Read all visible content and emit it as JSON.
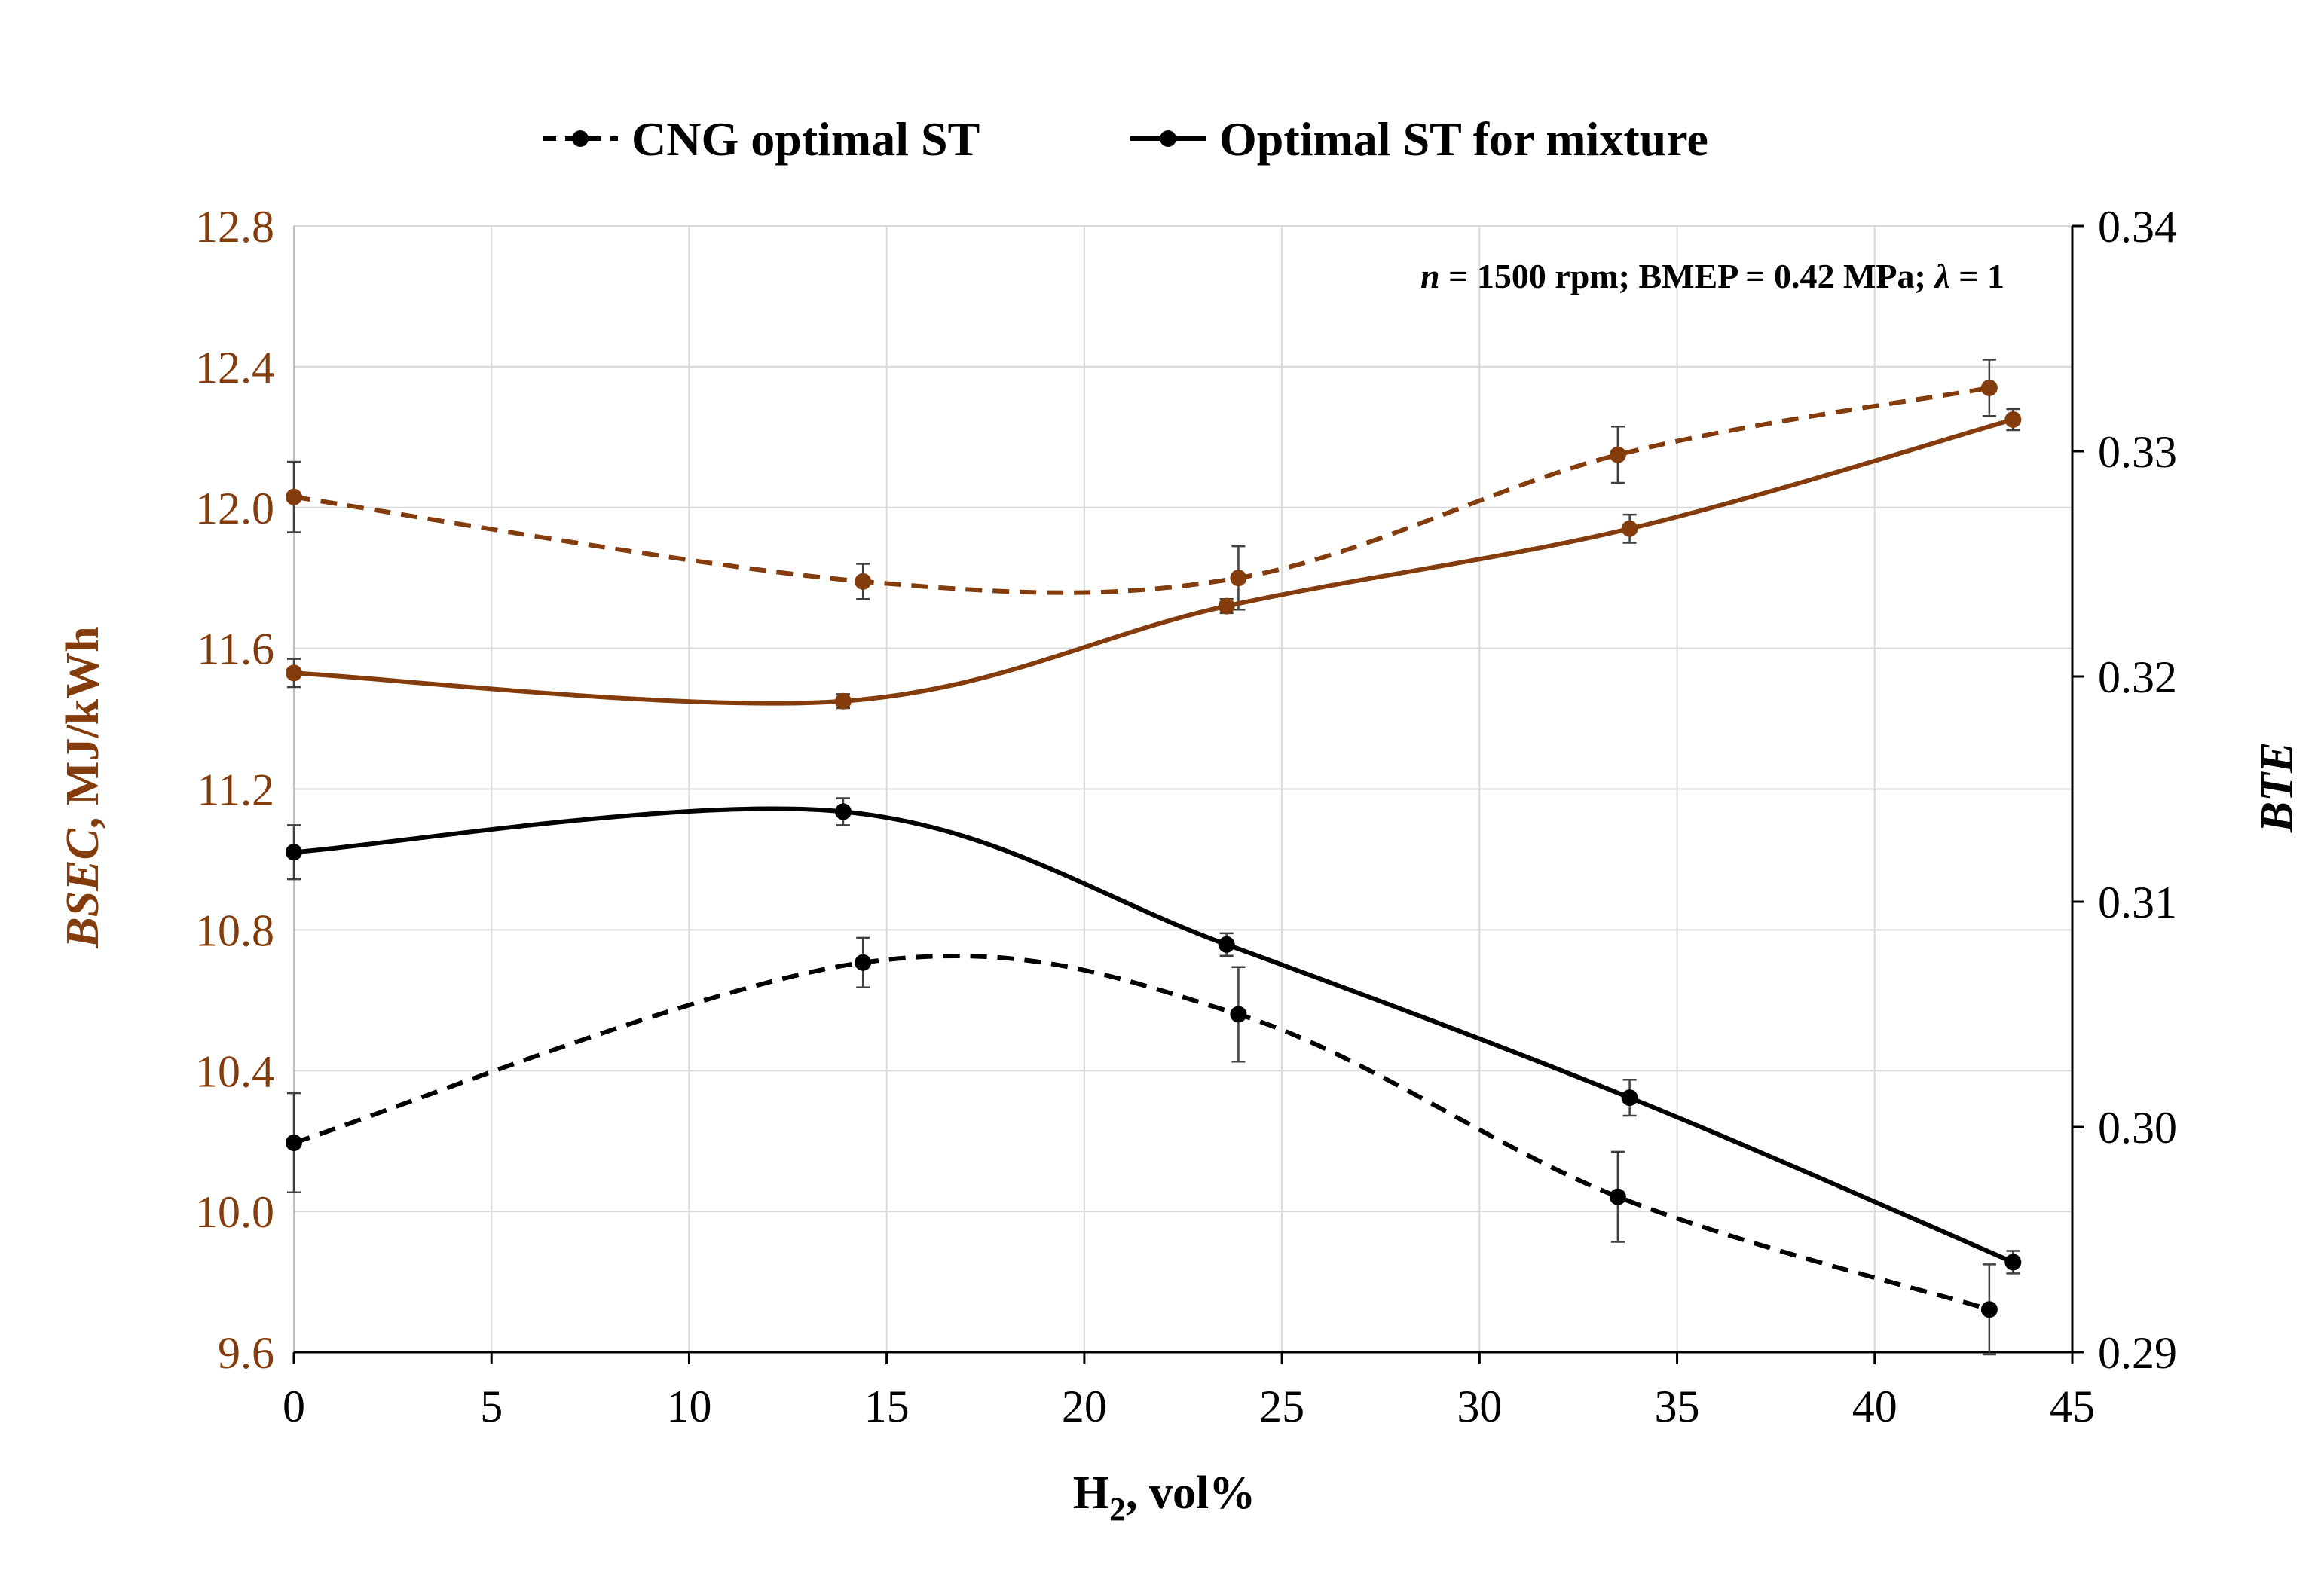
{
  "chart_data": {
    "type": "line",
    "annotation": {
      "var": "n",
      "text": " = 1500 rpm; BMEP = 0.42 MPa; ",
      "lambda": "λ",
      "lambda_text": " = 1"
    },
    "x_axis": {
      "label_main": "H",
      "label_sub": "2",
      "label_rest": ", vol%",
      "ticks": [
        "0",
        "5",
        "10",
        "15",
        "20",
        "25",
        "30",
        "35",
        "40",
        "45"
      ],
      "range": [
        0,
        45
      ]
    },
    "y_left": {
      "label_italic": "BSEC",
      "label_rest": ", MJ/kWh",
      "ticks": [
        "9.6",
        "10.0",
        "10.4",
        "10.8",
        "11.2",
        "11.6",
        "12.0",
        "12.4",
        "12.8"
      ],
      "range": [
        9.6,
        12.8
      ],
      "color": "#843c0c"
    },
    "y_right": {
      "label_italic": "BTE",
      "ticks": [
        "0.29",
        "0.30",
        "0.31",
        "0.32",
        "0.33",
        "0.34"
      ],
      "range": [
        0.29,
        0.34
      ],
      "color": "#000000"
    },
    "legend": [
      {
        "label": "CNG optimal ST",
        "style": "dashed"
      },
      {
        "label": "Optimal ST for mixture",
        "style": "solid"
      }
    ],
    "series": [
      {
        "name": "CNG optimal ST",
        "quantity": "BSEC",
        "axis": "left",
        "style": "dashed",
        "color": "#843c0c",
        "x": [
          0,
          14.4,
          23.9,
          33.5,
          42.9
        ],
        "y": [
          12.03,
          11.79,
          11.8,
          12.15,
          12.34
        ],
        "err": [
          0.1,
          0.05,
          0.09,
          0.08,
          0.08
        ]
      },
      {
        "name": "Optimal ST for mixture",
        "quantity": "BSEC",
        "axis": "left",
        "style": "solid",
        "color": "#843c0c",
        "x": [
          0,
          13.9,
          23.6,
          33.8,
          43.5
        ],
        "y": [
          11.53,
          11.45,
          11.72,
          11.94,
          12.25
        ],
        "err": [
          0.04,
          0.02,
          0.02,
          0.04,
          0.03
        ]
      },
      {
        "name": "Optimal ST for mixture",
        "quantity": "BTE",
        "axis": "right",
        "style": "solid",
        "color": "#000000",
        "x": [
          0,
          13.9,
          23.6,
          33.8,
          43.5
        ],
        "y": [
          0.3122,
          0.314,
          0.3081,
          0.3013,
          0.294
        ],
        "err": [
          0.0012,
          0.0006,
          0.0005,
          0.0008,
          0.0005
        ]
      },
      {
        "name": "CNG optimal ST",
        "quantity": "BTE",
        "axis": "right",
        "style": "dashed",
        "color": "#000000",
        "x": [
          0,
          14.4,
          23.9,
          33.5,
          42.9
        ],
        "y": [
          0.2993,
          0.3073,
          0.305,
          0.2969,
          0.2919
        ],
        "err": [
          0.0022,
          0.0011,
          0.0021,
          0.002,
          0.002
        ]
      }
    ]
  }
}
